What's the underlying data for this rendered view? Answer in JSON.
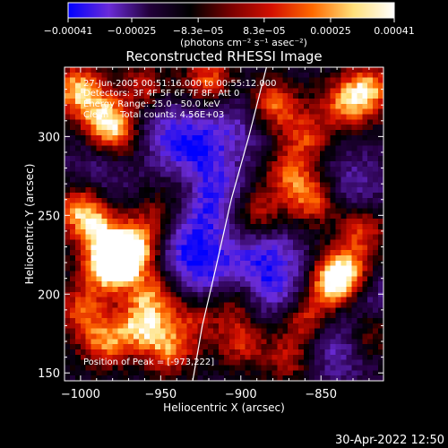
{
  "chart_data": {
    "type": "heatmap",
    "title": "Reconstructed RHESSI Image",
    "xlabel": "Heliocentric X (arcsec)",
    "ylabel": "Heliocentric Y (arcsec)",
    "xlim": [
      -1010,
      -811
    ],
    "ylim": [
      145,
      344
    ],
    "x_ticks": [
      -1000,
      -950,
      -900,
      -850
    ],
    "x_tick_labels": [
      "−1000",
      "−950",
      "−900",
      "−850"
    ],
    "y_ticks": [
      150,
      200,
      250,
      300
    ],
    "y_tick_labels": [
      "150",
      "200",
      "250",
      "300"
    ],
    "colorbar": {
      "range": [
        -0.00041,
        0.00041
      ],
      "ticks": [
        -0.00041,
        -0.00025,
        -8.3e-05,
        8.3e-05,
        0.00025,
        0.00041
      ],
      "tick_labels": [
        "−0.00041",
        "−0.00025",
        "−8.3e−05",
        "8.3e−05",
        "0.00025",
        "0.00041"
      ],
      "unit_label": "(photons cm⁻² s⁻¹ asec⁻²)",
      "stops": [
        "#0000ff",
        "#6a2bd8",
        "#22003a",
        "#000000",
        "#7a0000",
        "#d41000",
        "#ff6a00",
        "#ffe07a",
        "#ffffff"
      ]
    },
    "annotations": [
      "27-Jun-2005 00:51:16.000 to 00:55:12.000",
      "Detectors: 3F 4F 5F 6F 7F 8F, Att 0",
      "Energy Range: 25.0 - 50.0 keV",
      "Clean    Total counts: 4.56E+03"
    ],
    "peak_label": "Position of Peak = [-973,222]",
    "limb_curve": [
      [
        -930,
        145
      ],
      [
        -924,
        180
      ],
      [
        -916,
        215
      ],
      [
        -906,
        260
      ],
      [
        -895,
        300
      ],
      [
        -884,
        344
      ]
    ],
    "bright_sources": [
      {
        "x": -1002,
        "y": 330,
        "level": 0.9
      },
      {
        "x": -985,
        "y": 312,
        "level": 0.85
      },
      {
        "x": -975,
        "y": 300,
        "level": 0.6
      },
      {
        "x": -1000,
        "y": 255,
        "level": 0.8
      },
      {
        "x": -990,
        "y": 240,
        "level": 0.7
      },
      {
        "x": -975,
        "y": 222,
        "level": 1.0
      },
      {
        "x": -965,
        "y": 232,
        "level": 0.8
      },
      {
        "x": -985,
        "y": 215,
        "level": 0.7
      },
      {
        "x": -955,
        "y": 200,
        "level": 0.7
      },
      {
        "x": -962,
        "y": 180,
        "level": 0.8
      },
      {
        "x": -985,
        "y": 170,
        "level": 0.75
      },
      {
        "x": -945,
        "y": 165,
        "level": 0.7
      },
      {
        "x": -1000,
        "y": 190,
        "level": 0.6
      },
      {
        "x": -960,
        "y": 330,
        "level": 0.6
      },
      {
        "x": -920,
        "y": 335,
        "level": 0.7
      },
      {
        "x": -880,
        "y": 320,
        "level": 0.8
      },
      {
        "x": -860,
        "y": 300,
        "level": 0.6
      },
      {
        "x": -835,
        "y": 320,
        "level": 0.7
      },
      {
        "x": -820,
        "y": 330,
        "level": 0.8
      },
      {
        "x": -870,
        "y": 275,
        "level": 0.6
      },
      {
        "x": -890,
        "y": 250,
        "level": 0.6
      },
      {
        "x": -855,
        "y": 260,
        "level": 0.7
      },
      {
        "x": -825,
        "y": 240,
        "level": 0.6
      },
      {
        "x": -843,
        "y": 205,
        "level": 0.95
      },
      {
        "x": -835,
        "y": 215,
        "level": 0.8
      },
      {
        "x": -860,
        "y": 185,
        "level": 0.7
      },
      {
        "x": -820,
        "y": 175,
        "level": 0.6
      },
      {
        "x": -870,
        "y": 160,
        "level": 0.5
      },
      {
        "x": -900,
        "y": 170,
        "level": 0.55
      },
      {
        "x": -905,
        "y": 195,
        "level": 0.45
      },
      {
        "x": -930,
        "y": 185,
        "level": 0.5
      },
      {
        "x": -935,
        "y": 270,
        "level": 0.4
      },
      {
        "x": -950,
        "y": 250,
        "level": 0.45
      }
    ],
    "dark_sources": [
      {
        "x": -930,
        "y": 290,
        "level": 0.9
      },
      {
        "x": -920,
        "y": 260,
        "level": 0.8
      },
      {
        "x": -935,
        "y": 230,
        "level": 0.7
      },
      {
        "x": -920,
        "y": 210,
        "level": 0.6
      },
      {
        "x": -885,
        "y": 225,
        "level": 0.7
      },
      {
        "x": -875,
        "y": 200,
        "level": 0.6
      },
      {
        "x": -900,
        "y": 310,
        "level": 0.5
      },
      {
        "x": -840,
        "y": 165,
        "level": 0.6
      },
      {
        "x": -820,
        "y": 195,
        "level": 0.5
      },
      {
        "x": -955,
        "y": 310,
        "level": 0.5
      },
      {
        "x": -990,
        "y": 275,
        "level": 0.4
      },
      {
        "x": -830,
        "y": 270,
        "level": 0.5
      }
    ]
  },
  "footer": {
    "date": "30-Apr-2022 12:50"
  }
}
